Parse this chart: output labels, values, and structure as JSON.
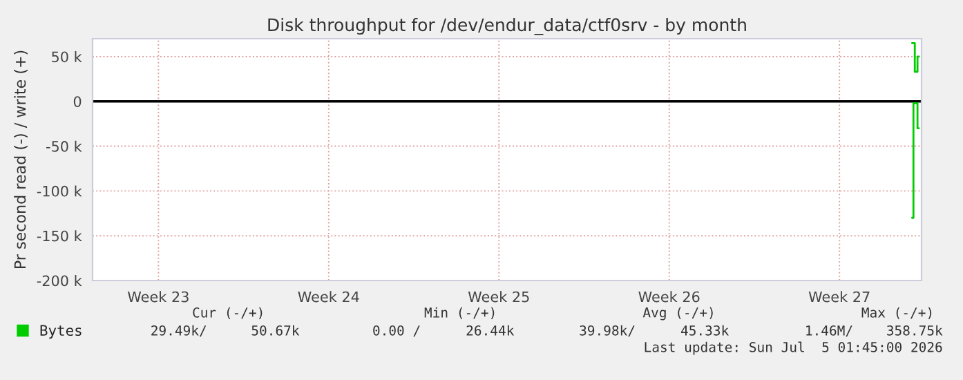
{
  "chart_data": {
    "type": "step",
    "title": "Disk throughput for /dev/endur_data/ctf0srv - by month",
    "ylabel": "Pr second read (-) / write (+)",
    "xlim": [
      "2026-06-01T00:00",
      "2026-07-05T02:00"
    ],
    "xticks": [
      {
        "value": "2026-06-03T17:00",
        "label": "Week 23"
      },
      {
        "value": "2026-06-10T17:00",
        "label": "Week 24"
      },
      {
        "value": "2026-06-17T17:00",
        "label": "Week 25"
      },
      {
        "value": "2026-06-24T17:00",
        "label": "Week 26"
      },
      {
        "value": "2026-07-01T17:00",
        "label": "Week 27"
      }
    ],
    "ylim": [
      -200000,
      70000
    ],
    "yticks": [
      {
        "value": 50000,
        "label": "50 k"
      },
      0,
      {
        "value": -50000,
        "label": "-50 k"
      },
      {
        "value": -100000,
        "label": "-100 k"
      },
      {
        "value": -150000,
        "label": "-150 k"
      },
      {
        "value": -200000,
        "label": "-200 k"
      }
    ],
    "series": [
      {
        "name": "Bytes",
        "color": "#00cc00",
        "x": [
          "2026-07-04T16:40",
          "2026-07-04T18:00",
          "2026-07-04T19:20",
          "2026-07-04T20:40",
          "2026-07-04T22:00",
          "2026-07-04T23:20"
        ],
        "values": [
          65000,
          65000,
          33000,
          33000,
          50000,
          50000
        ]
      },
      {
        "color": "#00cc00",
        "x": [
          "2026-07-04T16:40",
          "2026-07-04T18:00",
          "2026-07-04T19:20",
          "2026-07-04T22:00",
          "2026-07-04T23:20"
        ],
        "values": [
          -130000,
          -2000,
          -2000,
          -30000,
          -30000
        ]
      }
    ],
    "ref_lines": [
      {
        "axis": "y",
        "value": 0,
        "color": "#000000"
      }
    ],
    "grid": true,
    "legend": "bottom left",
    "annotations": [
      "Cur (-/+)",
      "Min (-/+)",
      "Avg (-/+)",
      "Max (-/+)",
      "29.49k/",
      "50.67k",
      "0.00 /",
      "26.44k",
      "39.98k/",
      "45.33k",
      "1.46M/",
      "358.75k",
      "Last update: Sun Jul  5 01:45:00 2026"
    ]
  }
}
